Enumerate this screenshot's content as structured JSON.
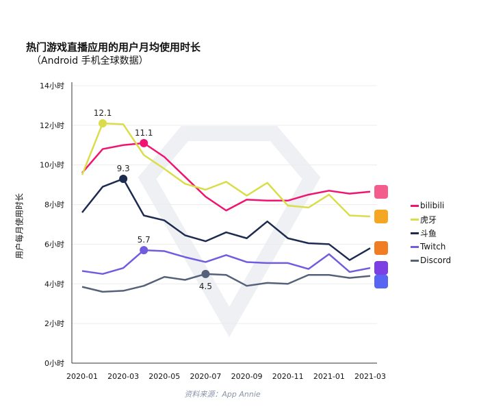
{
  "title": "热门游戏直播应用的用户月均使用时长",
  "subtitle": "（Android 手机全球数据）",
  "source": "资料来源：App Annie",
  "chart_data": {
    "type": "line",
    "title": "热门游戏直播应用的用户月均使用时长",
    "subtitle": "（Android 手机全球数据）",
    "ylabel": "用户每月使用时长",
    "xlabel": "",
    "x": [
      "2020-01",
      "2020-02",
      "2020-03",
      "2020-04",
      "2020-05",
      "2020-06",
      "2020-07",
      "2020-08",
      "2020-09",
      "2020-10",
      "2020-11",
      "2020-12",
      "2021-01",
      "2021-02",
      "2021-03"
    ],
    "xtick_labels": [
      "2020-01",
      "2020-03",
      "2020-05",
      "2020-07",
      "2020-09",
      "2020-11",
      "2021-01",
      "2021-03"
    ],
    "ylim": [
      0,
      14
    ],
    "ytick_labels": [
      "0小时",
      "2小时",
      "4小时",
      "6小时",
      "8小时",
      "10小时",
      "12小时",
      "14小时"
    ],
    "grid": true,
    "legend_position": "right",
    "series": [
      {
        "name": "bilibili",
        "color": "#f0136f",
        "icon": "bilibili-app-icon",
        "icon_color": "#f25d8e",
        "values": [
          9.6,
          10.8,
          11.0,
          11.1,
          10.4,
          9.4,
          8.4,
          7.7,
          8.25,
          8.2,
          8.2,
          8.5,
          8.7,
          8.55,
          8.65
        ],
        "annotation": {
          "month": "2020-04",
          "label": "11.1"
        }
      },
      {
        "name": "虎牙",
        "color": "#d9dd4a",
        "icon": "huya-app-icon",
        "icon_color": "#f5a623",
        "values": [
          9.5,
          12.1,
          12.05,
          10.5,
          9.8,
          9.05,
          8.75,
          9.15,
          8.45,
          9.1,
          7.95,
          7.85,
          8.5,
          7.45,
          7.4
        ],
        "annotation": {
          "month": "2020-02",
          "label": "12.1"
        }
      },
      {
        "name": "斗鱼",
        "color": "#1c2b4f",
        "icon": "douyu-app-icon",
        "icon_color": "#f07c24",
        "values": [
          7.6,
          8.9,
          9.3,
          7.45,
          7.2,
          6.45,
          6.15,
          6.6,
          6.3,
          7.15,
          6.3,
          6.05,
          6.0,
          5.2,
          5.8
        ],
        "annotation": {
          "month": "2020-03",
          "label": "9.3"
        }
      },
      {
        "name": "Twitch",
        "color": "#6f5ce0",
        "icon": "twitch-app-icon",
        "icon_color": "#7b3fe4",
        "values": [
          4.65,
          4.5,
          4.8,
          5.7,
          5.65,
          5.35,
          5.1,
          5.45,
          5.1,
          5.05,
          5.05,
          4.75,
          5.5,
          4.6,
          4.8
        ],
        "annotation": {
          "month": "2020-04",
          "label": "5.7"
        }
      },
      {
        "name": "Discord",
        "color": "#55607a",
        "icon": "discord-app-icon",
        "icon_color": "#5865f2",
        "values": [
          3.85,
          3.6,
          3.65,
          3.9,
          4.35,
          4.2,
          4.5,
          4.45,
          3.9,
          4.05,
          4.0,
          4.45,
          4.45,
          4.3,
          4.4
        ],
        "annotation": {
          "month": "2020-07",
          "label": "4.5",
          "below": true
        }
      }
    ]
  }
}
